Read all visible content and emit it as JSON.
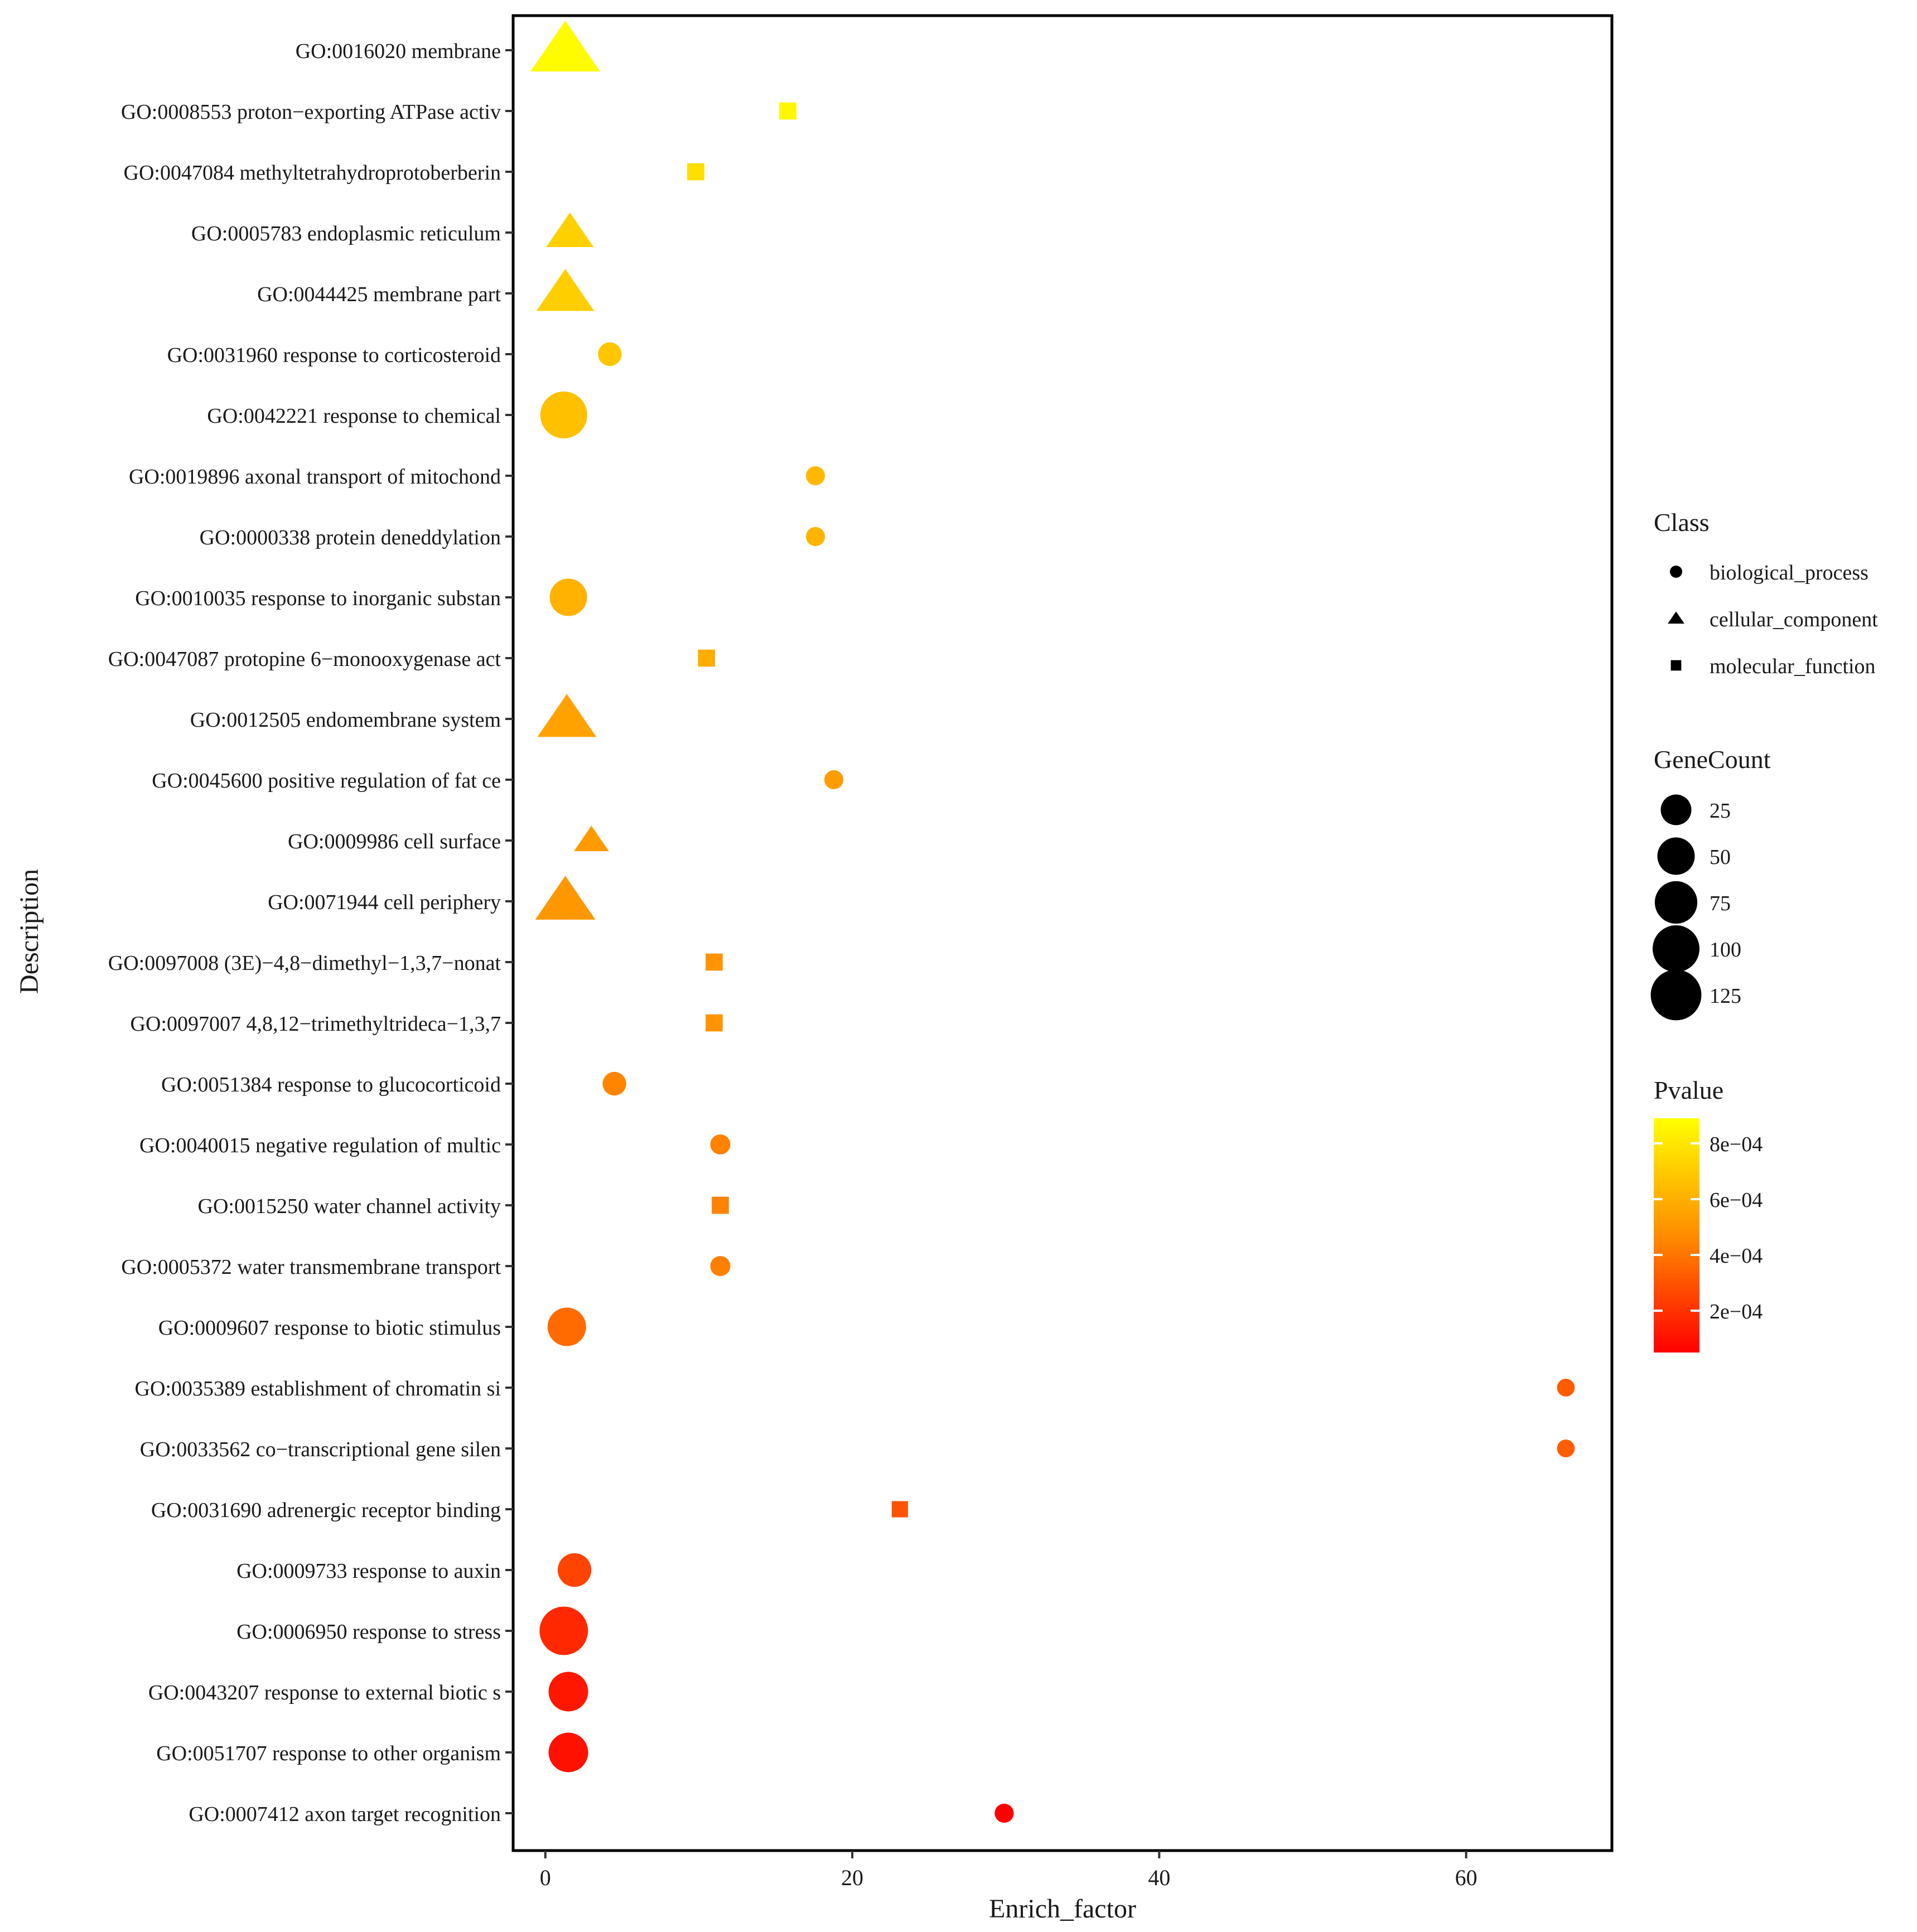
{
  "chart_data": {
    "type": "scatter",
    "xlabel": "Enrich_factor",
    "ylabel": "Description",
    "xlim": [
      -2.1,
      69.5
    ],
    "xticks": [
      0,
      20,
      40,
      60
    ],
    "grid": false,
    "legend_position": "right",
    "points": [
      {
        "label": "GO:0016020 membrane",
        "enrich_factor": 1.3,
        "class": "cellular_component",
        "gene_count": 130,
        "pvalue": 0.00088
      },
      {
        "label": "GO:0008553 proton−exporting ATPase activ",
        "enrich_factor": 15.8,
        "class": "molecular_function",
        "gene_count": 3,
        "pvalue": 0.00086
      },
      {
        "label": "GO:0047084 methyltetrahydroprotoberberin",
        "enrich_factor": 9.8,
        "class": "molecular_function",
        "gene_count": 3,
        "pvalue": 0.00077
      },
      {
        "label": "GO:0005783 endoplasmic reticulum",
        "enrich_factor": 1.6,
        "class": "cellular_component",
        "gene_count": 40,
        "pvalue": 0.00072
      },
      {
        "label": "GO:0044425 membrane part",
        "enrich_factor": 1.3,
        "class": "cellular_component",
        "gene_count": 75,
        "pvalue": 0.00071
      },
      {
        "label": "GO:0031960 response to corticosteroid",
        "enrich_factor": 4.2,
        "class": "biological_process",
        "gene_count": 8,
        "pvalue": 0.00068
      },
      {
        "label": "GO:0042221 response to chemical",
        "enrich_factor": 1.2,
        "class": "biological_process",
        "gene_count": 100,
        "pvalue": 0.00066
      },
      {
        "label": "GO:0019896 axonal transport of mitochond",
        "enrich_factor": 17.6,
        "class": "biological_process",
        "gene_count": 2,
        "pvalue": 0.00063
      },
      {
        "label": "GO:0000338 protein deneddylation",
        "enrich_factor": 17.6,
        "class": "biological_process",
        "gene_count": 2,
        "pvalue": 0.00062
      },
      {
        "label": "GO:0010035 response to inorganic substan",
        "enrich_factor": 1.5,
        "class": "biological_process",
        "gene_count": 50,
        "pvalue": 0.00061
      },
      {
        "label": "GO:0047087 protopine 6−monooxygenase act",
        "enrich_factor": 10.5,
        "class": "molecular_function",
        "gene_count": 3,
        "pvalue": 0.00059
      },
      {
        "label": "GO:0012505 endomembrane system",
        "enrich_factor": 1.4,
        "class": "cellular_component",
        "gene_count": 80,
        "pvalue": 0.00055
      },
      {
        "label": "GO:0045600 positive regulation of fat ce",
        "enrich_factor": 18.8,
        "class": "biological_process",
        "gene_count": 2,
        "pvalue": 0.00053
      },
      {
        "label": "GO:0009986 cell surface",
        "enrich_factor": 3.0,
        "class": "cellular_component",
        "gene_count": 12,
        "pvalue": 0.00052
      },
      {
        "label": "GO:0071944 cell periphery",
        "enrich_factor": 1.3,
        "class": "cellular_component",
        "gene_count": 85,
        "pvalue": 0.00051
      },
      {
        "label": "GO:0097008 (3E)−4,8−dimethyl−1,3,7−nonat",
        "enrich_factor": 11.0,
        "class": "molecular_function",
        "gene_count": 3,
        "pvalue": 0.0005
      },
      {
        "label": "GO:0097007 4,8,12−trimethyltrideca−1,3,7",
        "enrich_factor": 11.0,
        "class": "molecular_function",
        "gene_count": 3,
        "pvalue": 0.0005
      },
      {
        "label": "GO:0051384 response to glucocorticoid",
        "enrich_factor": 4.5,
        "class": "biological_process",
        "gene_count": 8,
        "pvalue": 0.00045
      },
      {
        "label": "GO:0040015 negative regulation of multic",
        "enrich_factor": 11.4,
        "class": "biological_process",
        "gene_count": 3,
        "pvalue": 0.00044
      },
      {
        "label": "GO:0015250 water channel activity",
        "enrich_factor": 11.4,
        "class": "molecular_function",
        "gene_count": 3,
        "pvalue": 0.00044
      },
      {
        "label": "GO:0005372 water transmembrane transport",
        "enrich_factor": 11.4,
        "class": "biological_process",
        "gene_count": 3,
        "pvalue": 0.00043
      },
      {
        "label": "GO:0009607 response to biotic stimulus",
        "enrich_factor": 1.4,
        "class": "biological_process",
        "gene_count": 55,
        "pvalue": 0.00037
      },
      {
        "label": "GO:0035389 establishment of chromatin si",
        "enrich_factor": 66.5,
        "class": "biological_process",
        "gene_count": 1,
        "pvalue": 0.00033
      },
      {
        "label": "GO:0033562 co−transcriptional gene silen",
        "enrich_factor": 66.5,
        "class": "biological_process",
        "gene_count": 1,
        "pvalue": 0.00033
      },
      {
        "label": "GO:0031690 adrenergic receptor binding",
        "enrich_factor": 23.1,
        "class": "molecular_function",
        "gene_count": 2,
        "pvalue": 0.0003
      },
      {
        "label": "GO:0009733 response to auxin",
        "enrich_factor": 1.9,
        "class": "biological_process",
        "gene_count": 35,
        "pvalue": 0.00025
      },
      {
        "label": "GO:0006950 response to stress",
        "enrich_factor": 1.2,
        "class": "biological_process",
        "gene_count": 110,
        "pvalue": 0.00017
      },
      {
        "label": "GO:0043207 response to external biotic s",
        "enrich_factor": 1.5,
        "class": "biological_process",
        "gene_count": 60,
        "pvalue": 0.00012
      },
      {
        "label": "GO:0051707 response to other organism",
        "enrich_factor": 1.5,
        "class": "biological_process",
        "gene_count": 60,
        "pvalue": 0.0001
      },
      {
        "label": "GO:0007412 axon target recognition",
        "enrich_factor": 29.9,
        "class": "biological_process",
        "gene_count": 2,
        "pvalue": 5e-05
      }
    ],
    "legend": {
      "class_title": "Class",
      "class_entries": [
        {
          "name": "biological_process",
          "shape": "circle"
        },
        {
          "name": "cellular_component",
          "shape": "triangle"
        },
        {
          "name": "molecular_function",
          "shape": "square"
        }
      ],
      "genecount_title": "GeneCount",
      "genecount_values": [
        25,
        50,
        75,
        100,
        125
      ],
      "pvalue_title": "Pvalue",
      "pvalue_range": [
        5e-05,
        0.00089
      ],
      "pvalue_ticks": [
        {
          "value": 0.0008,
          "label": "8e−04"
        },
        {
          "value": 0.0006,
          "label": "6e−04"
        },
        {
          "value": 0.0004,
          "label": "4e−04"
        },
        {
          "value": 0.0002,
          "label": "2e−04"
        }
      ],
      "pvalue_colors": {
        "low": "#ff0000",
        "mid": "#ff8c00",
        "high": "#ffff00"
      }
    }
  }
}
